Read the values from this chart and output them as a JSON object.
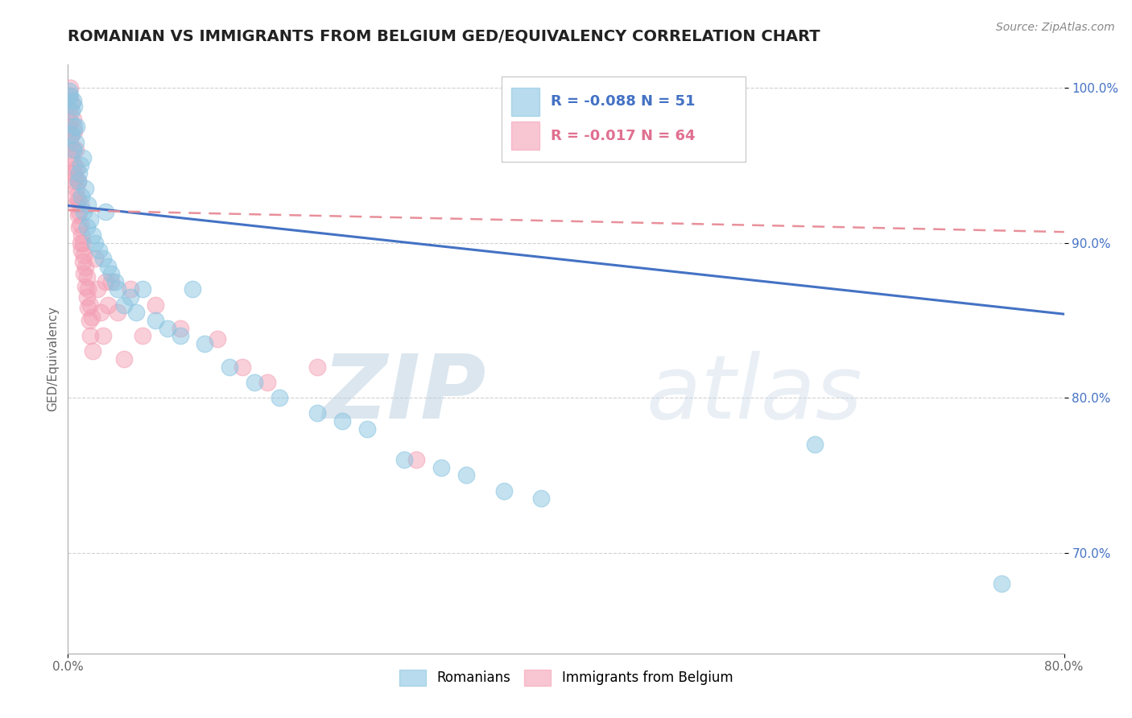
{
  "title": "ROMANIAN VS IMMIGRANTS FROM BELGIUM GED/EQUIVALENCY CORRELATION CHART",
  "source": "Source: ZipAtlas.com",
  "ylabel": "GED/Equivalency",
  "xlim": [
    0.0,
    0.8
  ],
  "ylim": [
    0.635,
    1.015
  ],
  "yticks": [
    0.7,
    0.8,
    0.9,
    1.0
  ],
  "yticklabels": [
    "70.0%",
    "80.0%",
    "90.0%",
    "100.0%"
  ],
  "legend_blue_label": "Romanians",
  "legend_pink_label": "Immigrants from Belgium",
  "r_blue": "-0.088",
  "n_blue": "51",
  "r_pink": "-0.017",
  "n_pink": "64",
  "color_blue": "#89C4E1",
  "color_pink": "#F4A0B5",
  "color_blue_line": "#4472C4",
  "color_pink_line": "#E8909A",
  "color_blue_text": "#4472C4",
  "color_pink_text": "#E07090",
  "watermark_zip": "ZIP",
  "watermark_atlas": "atlas",
  "grid_color": "#CCCCCC",
  "background_color": "#FFFFFF",
  "title_fontsize": 14,
  "axis_label_fontsize": 11,
  "tick_fontsize": 11,
  "source_fontsize": 10,
  "blue_scatter_x": [
    0.001,
    0.002,
    0.003,
    0.003,
    0.004,
    0.004,
    0.005,
    0.005,
    0.006,
    0.007,
    0.008,
    0.009,
    0.01,
    0.011,
    0.012,
    0.013,
    0.014,
    0.015,
    0.016,
    0.018,
    0.02,
    0.022,
    0.025,
    0.028,
    0.03,
    0.032,
    0.035,
    0.038,
    0.04,
    0.045,
    0.05,
    0.055,
    0.06,
    0.07,
    0.08,
    0.09,
    0.1,
    0.11,
    0.13,
    0.15,
    0.17,
    0.2,
    0.22,
    0.24,
    0.27,
    0.3,
    0.32,
    0.35,
    0.38,
    0.6,
    0.75
  ],
  "blue_scatter_y": [
    0.998,
    0.995,
    0.97,
    0.985,
    0.992,
    0.96,
    0.988,
    0.975,
    0.965,
    0.975,
    0.94,
    0.945,
    0.95,
    0.93,
    0.955,
    0.92,
    0.935,
    0.91,
    0.925,
    0.915,
    0.905,
    0.9,
    0.895,
    0.89,
    0.92,
    0.885,
    0.88,
    0.875,
    0.87,
    0.86,
    0.865,
    0.855,
    0.87,
    0.85,
    0.845,
    0.84,
    0.87,
    0.835,
    0.82,
    0.81,
    0.8,
    0.79,
    0.785,
    0.78,
    0.76,
    0.755,
    0.75,
    0.74,
    0.735,
    0.77,
    0.68
  ],
  "pink_scatter_x": [
    0.001,
    0.001,
    0.001,
    0.002,
    0.002,
    0.002,
    0.003,
    0.003,
    0.003,
    0.004,
    0.004,
    0.004,
    0.005,
    0.005,
    0.005,
    0.006,
    0.006,
    0.006,
    0.007,
    0.007,
    0.007,
    0.008,
    0.008,
    0.008,
    0.009,
    0.009,
    0.01,
    0.01,
    0.01,
    0.011,
    0.011,
    0.012,
    0.012,
    0.013,
    0.013,
    0.014,
    0.014,
    0.015,
    0.015,
    0.016,
    0.016,
    0.017,
    0.018,
    0.018,
    0.019,
    0.02,
    0.022,
    0.024,
    0.026,
    0.028,
    0.03,
    0.032,
    0.035,
    0.04,
    0.045,
    0.05,
    0.06,
    0.07,
    0.09,
    0.12,
    0.14,
    0.16,
    0.2,
    0.28
  ],
  "pink_scatter_y": [
    0.975,
    0.985,
    0.995,
    0.965,
    0.978,
    1.0,
    0.955,
    0.97,
    0.99,
    0.945,
    0.96,
    0.98,
    0.94,
    0.95,
    0.972,
    0.93,
    0.942,
    0.96,
    0.925,
    0.935,
    0.948,
    0.918,
    0.928,
    0.94,
    0.91,
    0.92,
    0.9,
    0.912,
    0.925,
    0.895,
    0.905,
    0.888,
    0.9,
    0.88,
    0.892,
    0.872,
    0.884,
    0.865,
    0.878,
    0.858,
    0.87,
    0.85,
    0.86,
    0.84,
    0.852,
    0.83,
    0.89,
    0.87,
    0.855,
    0.84,
    0.875,
    0.86,
    0.875,
    0.855,
    0.825,
    0.87,
    0.84,
    0.86,
    0.845,
    0.838,
    0.82,
    0.81,
    0.82,
    0.76
  ],
  "blue_trend_x": [
    0.0,
    0.8
  ],
  "blue_trend_y": [
    0.924,
    0.854
  ],
  "pink_trend_x": [
    0.0,
    0.8
  ],
  "pink_trend_y": [
    0.921,
    0.907
  ]
}
